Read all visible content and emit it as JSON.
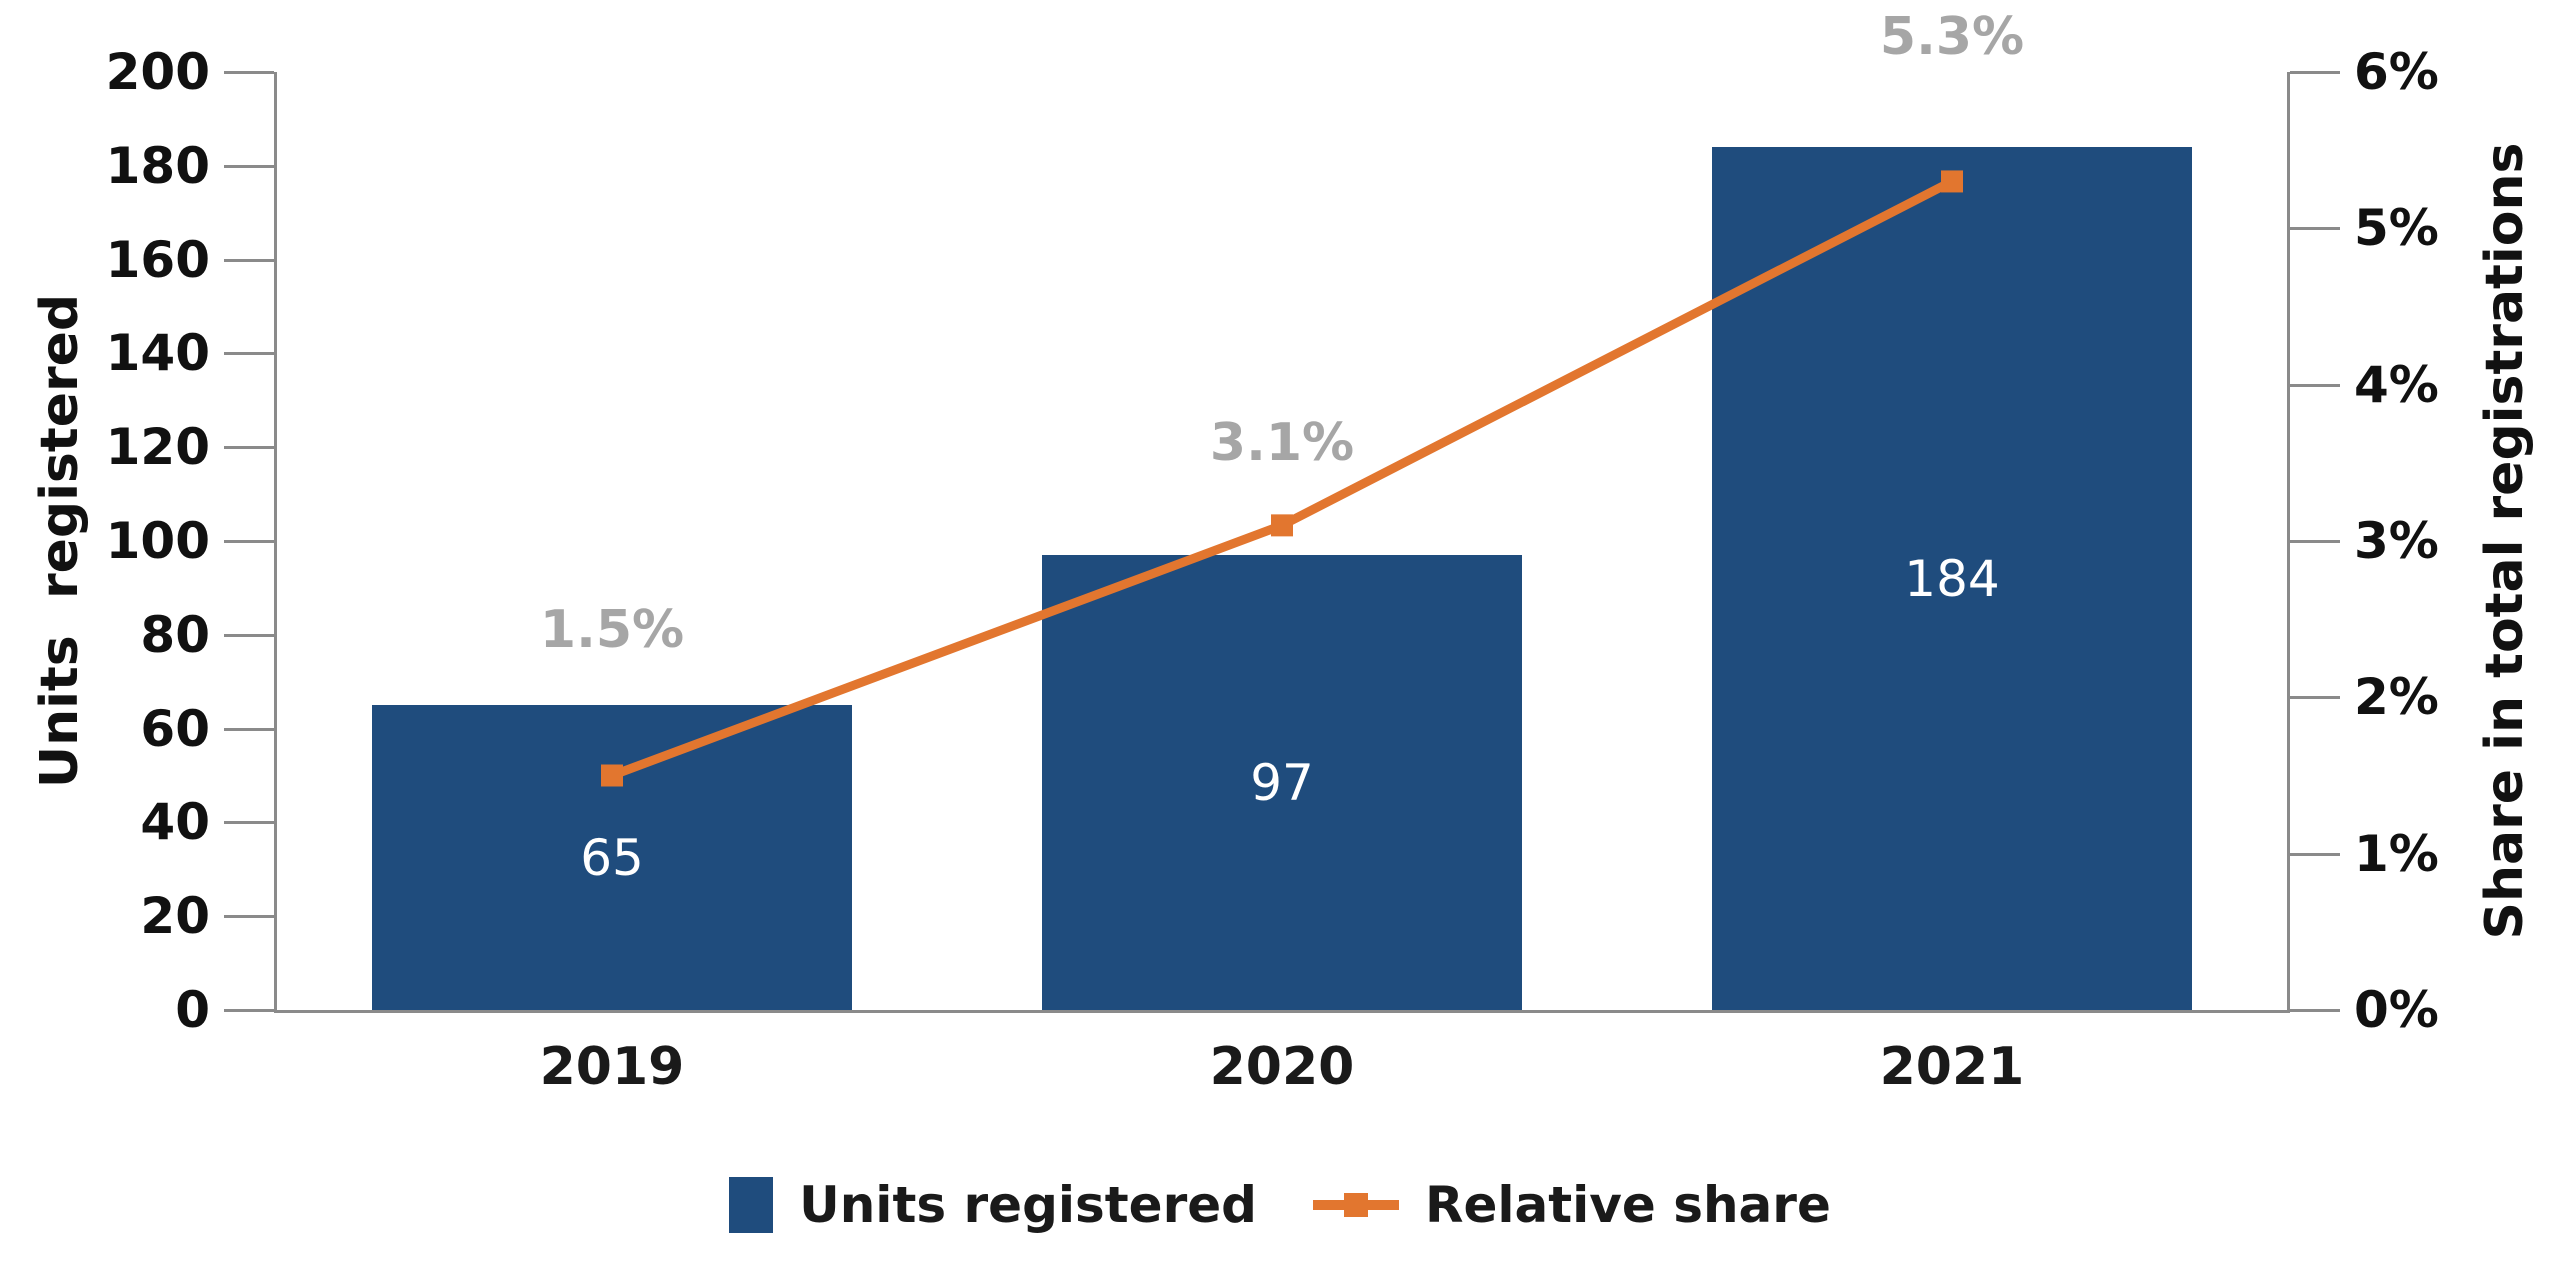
{
  "chart_data": {
    "type": "combo",
    "categories": [
      "2019",
      "2020",
      "2021"
    ],
    "series": [
      {
        "name": "Units registered",
        "type": "bar",
        "axis": "left",
        "values": [
          65,
          97,
          184
        ],
        "data_labels": [
          "65",
          "97",
          "184"
        ]
      },
      {
        "name": "Relative share",
        "type": "line",
        "axis": "right",
        "values": [
          1.5,
          3.1,
          5.3
        ],
        "data_labels": [
          "1.5%",
          "3.1%",
          "5.3%"
        ]
      }
    ],
    "left_axis": {
      "title": "Units  registered",
      "min": 0,
      "max": 200,
      "step": 20,
      "tick_labels": [
        "0",
        "20",
        "40",
        "60",
        "80",
        "100",
        "120",
        "140",
        "160",
        "180",
        "200"
      ]
    },
    "right_axis": {
      "title": "Share in total registrations",
      "min": 0,
      "max": 6,
      "step": 1,
      "tick_labels": [
        "0%",
        "1%",
        "2%",
        "3%",
        "4%",
        "5%",
        "6%"
      ]
    },
    "legend": {
      "position": "bottom",
      "items": [
        "Units registered",
        "Relative share"
      ]
    },
    "grid": false,
    "colors": {
      "bar": "#1F4C7D",
      "line": "#E2762F",
      "marker": "#E2762F",
      "bar_label": "#FFFFFF",
      "line_label": "#A6A6A6",
      "axis": "#8A8A8A",
      "text": "#111111"
    }
  }
}
